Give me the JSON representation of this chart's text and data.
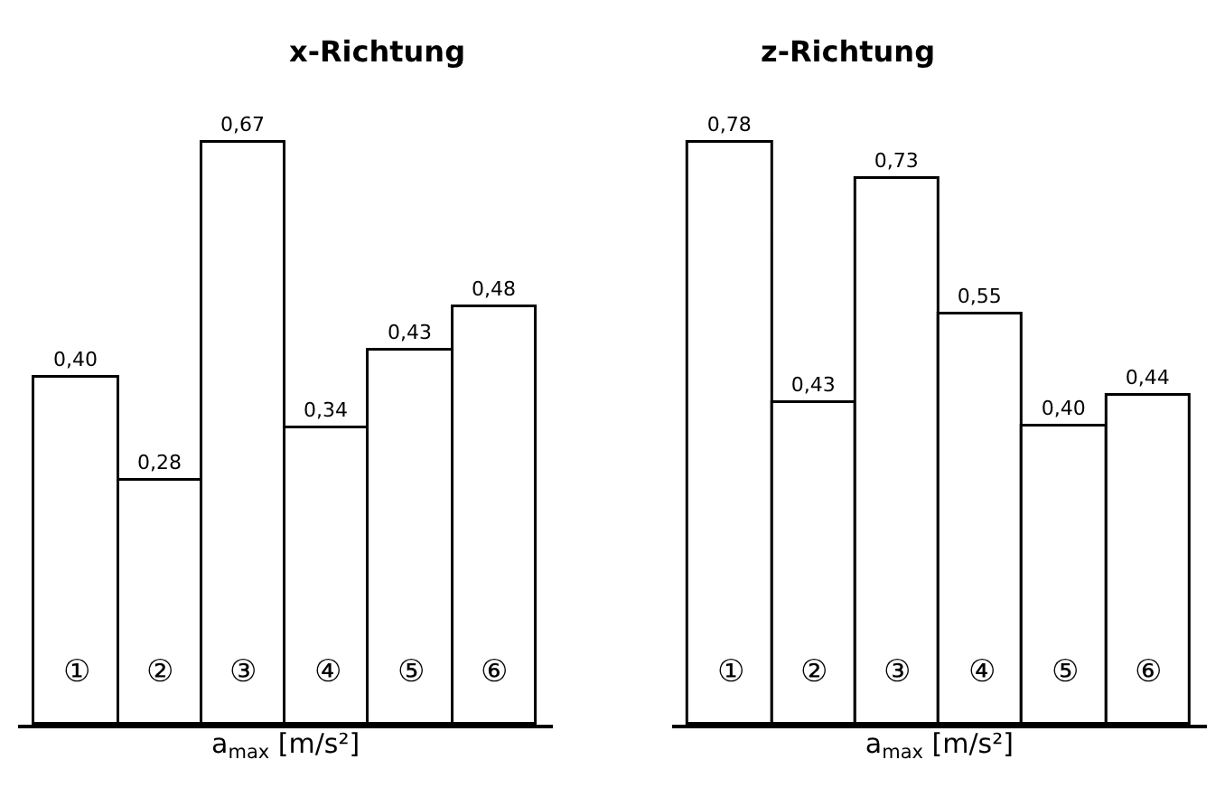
{
  "chart_data": [
    {
      "type": "bar",
      "title": "x-Richtung",
      "xlabel": "a$_{max}$ [m/s²]",
      "categories": [
        "①",
        "②",
        "③",
        "④",
        "⑤",
        "⑥"
      ],
      "values": [
        0.4,
        0.28,
        0.67,
        0.34,
        0.43,
        0.48
      ],
      "value_labels": [
        "0,40",
        "0,28",
        "0,67",
        "0,34",
        "0,43",
        "0,48"
      ],
      "color": "#ffffff"
    },
    {
      "type": "bar",
      "title": "z-Richtung",
      "xlabel": "a$_{max}$ [m/s²]",
      "categories": [
        "①",
        "②",
        "③",
        "④",
        "⑤",
        "⑥"
      ],
      "values": [
        0.78,
        0.43,
        0.73,
        0.55,
        0.4,
        0.44
      ],
      "value_labels": [
        "0,78",
        "0,43",
        "0,73",
        "0,55",
        "0,40",
        "0,44"
      ],
      "color": "#ffffff"
    }
  ]
}
